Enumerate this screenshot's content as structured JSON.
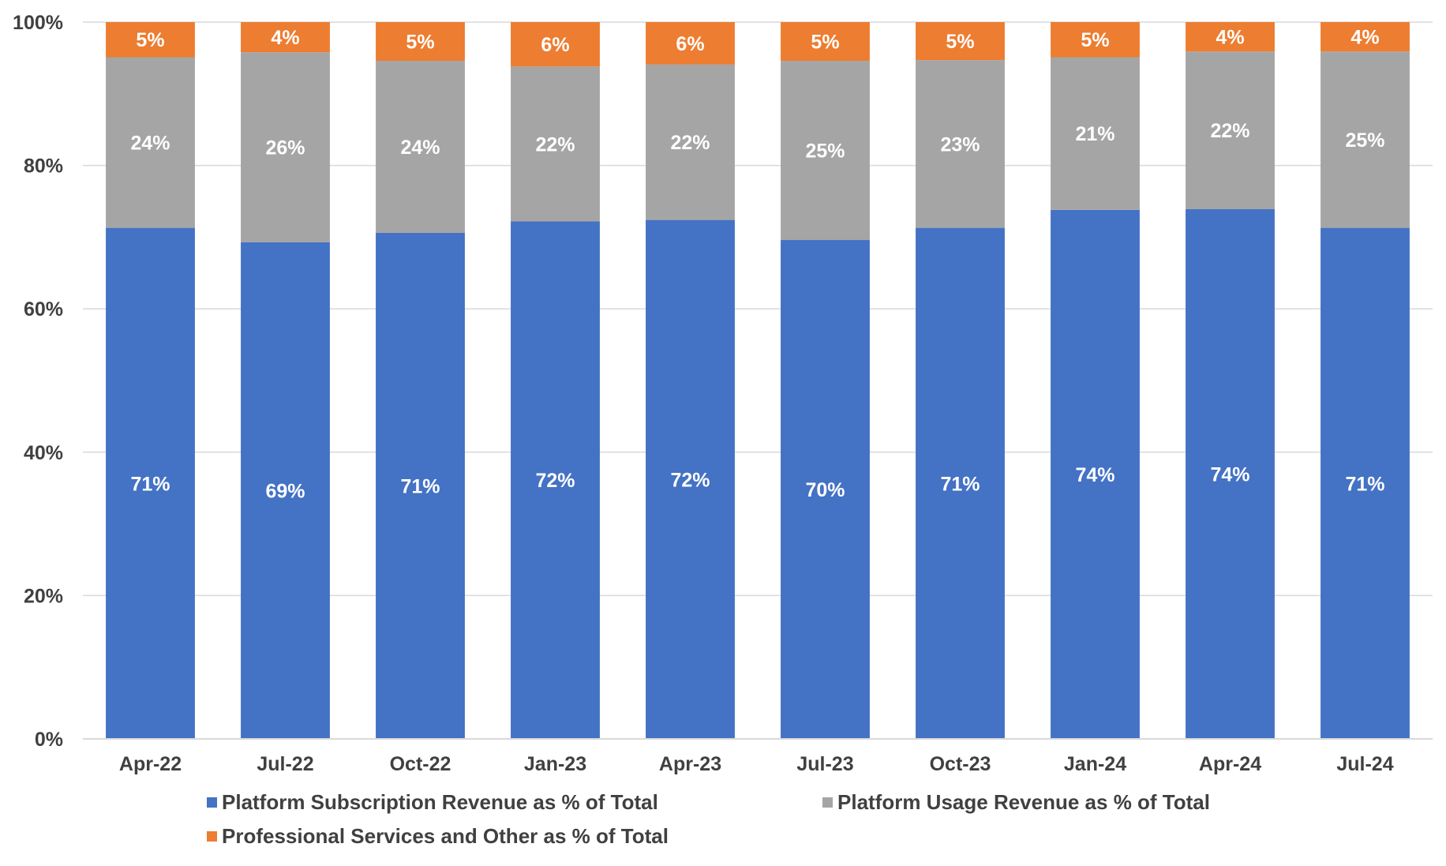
{
  "chart_data": {
    "type": "bar",
    "stacked": true,
    "title": "",
    "xlabel": "",
    "ylabel": "",
    "ylim": [
      0,
      100
    ],
    "y_ticks": [
      "0%",
      "20%",
      "40%",
      "60%",
      "80%",
      "100%"
    ],
    "y_tick_values": [
      0,
      20,
      40,
      60,
      80,
      100
    ],
    "grid": true,
    "legend_position": "bottom",
    "categories": [
      "Apr-22",
      "Jul-22",
      "Oct-22",
      "Jan-23",
      "Apr-23",
      "Jul-23",
      "Oct-23",
      "Jan-24",
      "Apr-24",
      "Jul-24"
    ],
    "series": [
      {
        "name": "Platform Subscription Revenue as % of Total",
        "color": "#4472C4",
        "values": [
          71.3,
          69.3,
          70.6,
          72.2,
          72.4,
          69.6,
          71.3,
          73.8,
          73.9,
          71.3
        ],
        "labels": [
          "71%",
          "69%",
          "71%",
          "72%",
          "72%",
          "70%",
          "71%",
          "74%",
          "74%",
          "71%"
        ]
      },
      {
        "name": "Platform Usage Revenue as % of Total",
        "color": "#A5A5A5",
        "values": [
          23.8,
          26.5,
          24.0,
          21.6,
          21.7,
          25.0,
          23.4,
          21.3,
          22.0,
          24.6
        ],
        "labels": [
          "24%",
          "26%",
          "24%",
          "22%",
          "22%",
          "25%",
          "23%",
          "21%",
          "22%",
          "25%"
        ]
      },
      {
        "name": "Professional Services and Other as % of Total",
        "color": "#ED7D31",
        "values": [
          4.9,
          4.2,
          5.4,
          6.2,
          5.9,
          5.4,
          5.3,
          4.9,
          4.1,
          4.1
        ],
        "labels": [
          "5%",
          "4%",
          "5%",
          "6%",
          "6%",
          "5%",
          "5%",
          "5%",
          "4%",
          "4%"
        ]
      }
    ]
  },
  "legend": {
    "item_1": "Platform Subscription Revenue as % of Total",
    "item_2": "Platform Usage Revenue as % of Total",
    "item_3": "Professional Services and Other as % of Total"
  },
  "colors": {
    "subscription": "#4472C4",
    "usage": "#A5A5A5",
    "services": "#ED7D31",
    "gridline": "#D9D9D9",
    "axis_text": "#404040"
  }
}
